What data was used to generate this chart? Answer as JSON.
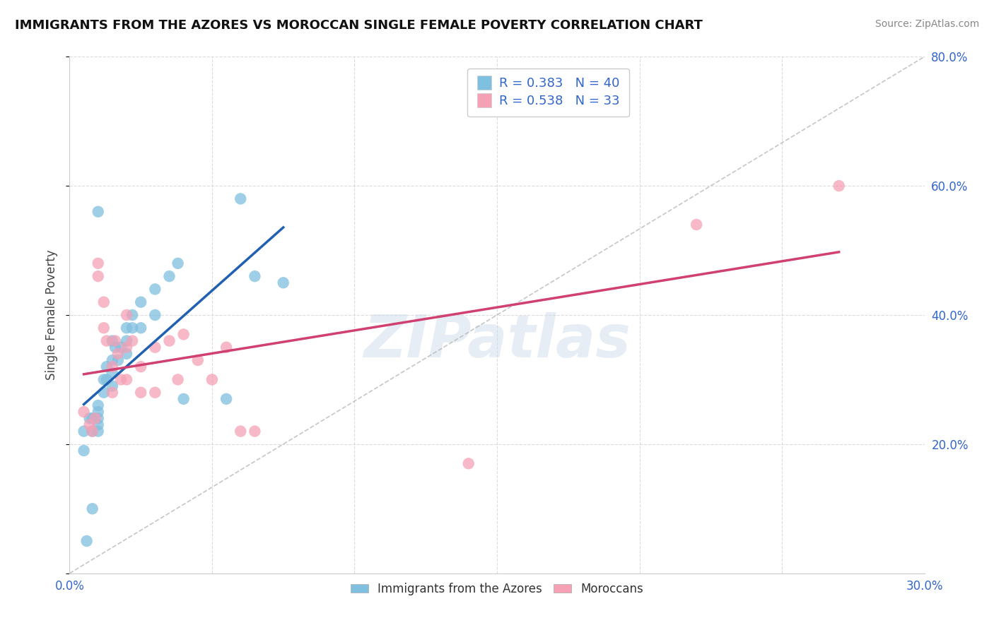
{
  "title": "IMMIGRANTS FROM THE AZORES VS MOROCCAN SINGLE FEMALE POVERTY CORRELATION CHART",
  "source": "Source: ZipAtlas.com",
  "ylabel": "Single Female Poverty",
  "xlim": [
    0,
    0.3
  ],
  "ylim": [
    0,
    0.8
  ],
  "legend_label1": "Immigrants from the Azores",
  "legend_label2": "Moroccans",
  "r1": 0.383,
  "n1": 40,
  "r2": 0.538,
  "n2": 33,
  "color_blue": "#7fbfdf",
  "color_pink": "#f5a0b5",
  "color_blue_line": "#2060b0",
  "color_pink_line": "#d04070",
  "color_diag": "#b8b8b8",
  "watermark": "ZIPatlas",
  "azores_x": [
    0.005,
    0.005,
    0.007,
    0.008,
    0.008,
    0.01,
    0.01,
    0.01,
    0.01,
    0.01,
    0.012,
    0.012,
    0.013,
    0.013,
    0.015,
    0.015,
    0.015,
    0.015,
    0.016,
    0.017,
    0.018,
    0.02,
    0.02,
    0.02,
    0.022,
    0.022,
    0.025,
    0.025,
    0.03,
    0.03,
    0.035,
    0.038,
    0.04,
    0.055,
    0.06,
    0.065,
    0.075,
    0.01,
    0.008,
    0.006
  ],
  "azores_y": [
    0.22,
    0.19,
    0.24,
    0.24,
    0.22,
    0.26,
    0.25,
    0.24,
    0.23,
    0.22,
    0.3,
    0.28,
    0.32,
    0.3,
    0.36,
    0.33,
    0.31,
    0.29,
    0.35,
    0.33,
    0.35,
    0.38,
    0.36,
    0.34,
    0.4,
    0.38,
    0.42,
    0.38,
    0.44,
    0.4,
    0.46,
    0.48,
    0.27,
    0.27,
    0.58,
    0.46,
    0.45,
    0.56,
    0.1,
    0.05
  ],
  "moroccan_x": [
    0.005,
    0.007,
    0.008,
    0.009,
    0.01,
    0.01,
    0.012,
    0.012,
    0.013,
    0.015,
    0.015,
    0.016,
    0.017,
    0.018,
    0.02,
    0.02,
    0.02,
    0.022,
    0.025,
    0.025,
    0.03,
    0.03,
    0.035,
    0.038,
    0.04,
    0.045,
    0.05,
    0.055,
    0.06,
    0.065,
    0.14,
    0.22,
    0.27
  ],
  "moroccan_y": [
    0.25,
    0.23,
    0.22,
    0.24,
    0.48,
    0.46,
    0.42,
    0.38,
    0.36,
    0.32,
    0.28,
    0.36,
    0.34,
    0.3,
    0.4,
    0.35,
    0.3,
    0.36,
    0.32,
    0.28,
    0.35,
    0.28,
    0.36,
    0.3,
    0.37,
    0.33,
    0.3,
    0.35,
    0.22,
    0.22,
    0.17,
    0.54,
    0.6
  ]
}
